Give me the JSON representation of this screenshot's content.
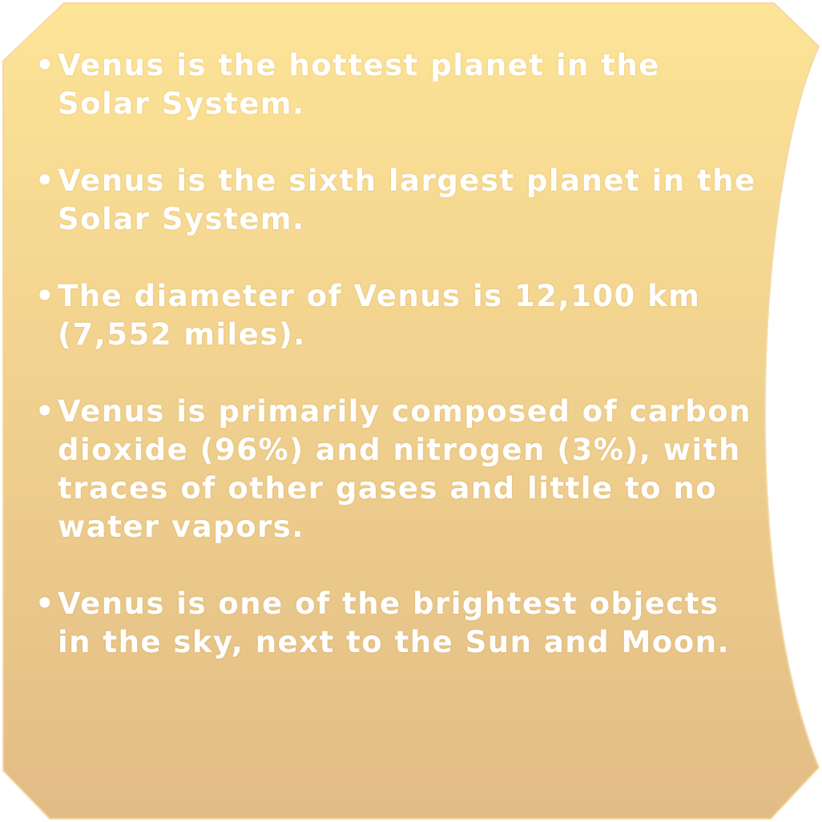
{
  "colors": {
    "panel_top": "#fde497",
    "panel_bottom": "#e2bc85",
    "text": "#ffffff"
  },
  "bullet_glyph": "•",
  "facts": [
    {
      "text": "Venus is the hottest planet in the Solar System."
    },
    {
      "text": "Venus is the sixth largest planet in the Solar System."
    },
    {
      "text": "The diameter of Venus is 12,100 km (7,552 miles)."
    },
    {
      "text": "Venus is primarily composed of carbon dioxide (96%) and nitrogen (3%), with traces of other gases and little to no water vapors."
    },
    {
      "text": "Venus is one of the brightest objects in the sky, next to the Sun and Moon."
    }
  ]
}
